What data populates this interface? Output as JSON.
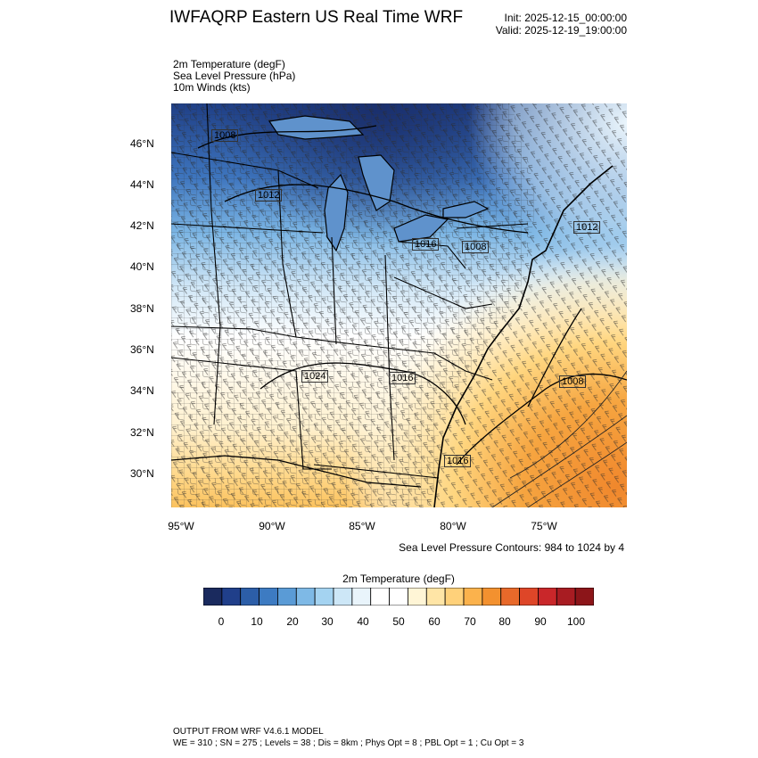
{
  "header": {
    "title": "IWFAQRP Eastern US Real Time WRF",
    "init": "Init: 2025-12-15_00:00:00",
    "valid": "Valid: 2025-12-19_19:00:00"
  },
  "fields": {
    "f1": "2m Temperature   (degF)",
    "f2": "Sea Level Pressure   (hPa)",
    "f3": "10m Winds   (kts)"
  },
  "axes": {
    "lat_labels": [
      "46°N",
      "44°N",
      "42°N",
      "40°N",
      "38°N",
      "36°N",
      "34°N",
      "32°N",
      "30°N"
    ],
    "lon_labels": [
      "95°W",
      "90°W",
      "85°W",
      "80°W",
      "75°W"
    ]
  },
  "pressure_labels": [
    "1008",
    "1012",
    "1016",
    "1008",
    "1024",
    "1016",
    "1008",
    "1016",
    "1012"
  ],
  "slp_note": "Sea Level Pressure Contours: 984 to 1024 by 4",
  "colorbar": {
    "title": "2m Temperature  (degF)",
    "labels": [
      "0",
      "10",
      "20",
      "30",
      "40",
      "50",
      "60",
      "70",
      "80",
      "90",
      "100"
    ],
    "colors": [
      "#1a2a5e",
      "#203f8a",
      "#2c5ea8",
      "#3d7bc2",
      "#5a9bd6",
      "#7eb9e6",
      "#a4d3f1",
      "#cde7f7",
      "#e9f4fb",
      "#ffffff",
      "#ffffff",
      "#fff5d6",
      "#ffe5a6",
      "#ffd17a",
      "#fbb24c",
      "#f3912f",
      "#e8692a",
      "#de4628",
      "#c9272a",
      "#a81c22",
      "#8c1519"
    ]
  },
  "footer": {
    "line1": "OUTPUT FROM WRF V4.6.1 MODEL",
    "line2": "WE = 310 ; SN = 275 ; Levels = 38 ; Dis = 8km ; Phys Opt = 8 ; PBL Opt = 1 ; Cu Opt = 3"
  }
}
